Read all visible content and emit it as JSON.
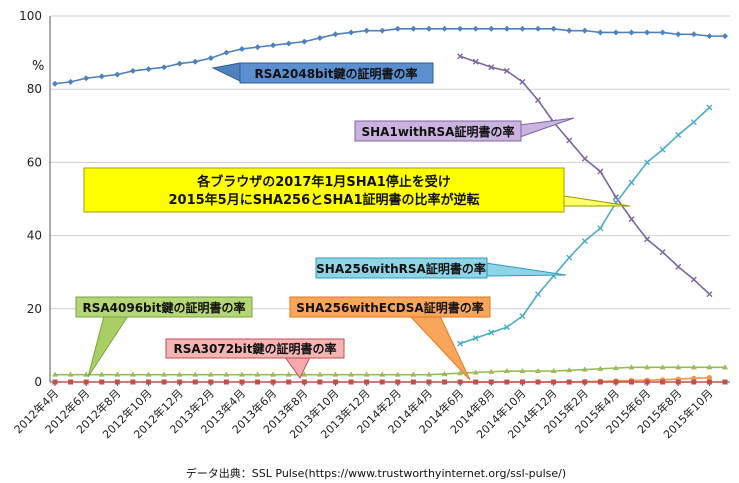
{
  "chart_data": {
    "type": "line",
    "ylabel": "%",
    "ylim": [
      0,
      100
    ],
    "yticks": [
      "0",
      "20",
      "40",
      "60",
      "80",
      "100"
    ],
    "grid": "horizontal",
    "x_labels": [
      "2012年4月",
      "2012年6月",
      "2012年8月",
      "2012年10月",
      "2012年12月",
      "2013年2月",
      "2013年4月",
      "2013年6月",
      "2013年8月",
      "2013年10月",
      "2013年12月",
      "2014年2月",
      "2014年4月",
      "2014年6月",
      "2014年8月",
      "2014年10月",
      "2014年12月",
      "2015年2月",
      "2015年4月",
      "2015年6月",
      "2015年8月",
      "2015年10月"
    ],
    "series": [
      {
        "name": "RSA2048bit鍵の証明書の率",
        "color": "#4f81bd",
        "marker": "diamond",
        "start": 0,
        "values": [
          81.5,
          82,
          83,
          83.5,
          84,
          85,
          85.5,
          86,
          87,
          87.5,
          88.5,
          90,
          91,
          91.5,
          92,
          92.5,
          93,
          94,
          95,
          95.5,
          96,
          96,
          96.5,
          96.5,
          96.5,
          96.5,
          96.5,
          96.5,
          96.5,
          96.5,
          96.5,
          96.5,
          96.5,
          96,
          96,
          95.5,
          95.5,
          95.5,
          95.5,
          95.5,
          95,
          95,
          94.5,
          94.5
        ]
      },
      {
        "name": "SHA1withRSA証明書の率",
        "color": "#8064a2",
        "marker": "x",
        "start": 26,
        "values": [
          89,
          87.5,
          86,
          85,
          82,
          77,
          71,
          66,
          61,
          57.5,
          50.5,
          44.5,
          39,
          35.5,
          31.5,
          28,
          24
        ]
      },
      {
        "name": "SHA256withRSA証明書の率",
        "color": "#4bacc6",
        "marker": "x",
        "start": 26,
        "values": [
          10.5,
          12,
          13.5,
          15,
          18,
          24,
          29,
          34,
          38.5,
          42,
          49,
          54.5,
          60,
          63.5,
          67.5,
          71,
          75
        ]
      },
      {
        "name": "RSA4096bit鍵の証明書の率",
        "color": "#9bbb59",
        "marker": "triangle",
        "start": 0,
        "values": [
          2,
          2,
          2,
          2,
          2,
          2,
          2,
          2,
          2,
          2,
          2,
          2,
          2,
          2,
          2,
          2,
          2,
          2,
          2,
          2,
          2,
          2,
          2,
          2,
          2,
          2.2,
          2.4,
          2.6,
          2.8,
          3,
          3,
          3,
          3,
          3.2,
          3.4,
          3.6,
          3.8,
          4,
          4,
          4,
          4,
          4,
          4,
          4
        ]
      },
      {
        "name": "SHA256withECDSA証明書の率",
        "color": "#f79646",
        "marker": "circle",
        "start": 26,
        "values": [
          0,
          0,
          0,
          0,
          0,
          0,
          0,
          0,
          0.1,
          0.2,
          0.3,
          0.4,
          0.5,
          0.6,
          0.8,
          1,
          1.2
        ]
      },
      {
        "name": "RSA3072bit鍵の証明書の率",
        "color": "#c0504d",
        "marker": "square",
        "start": 0,
        "values": [
          0,
          0,
          0,
          0,
          0,
          0,
          0,
          0,
          0,
          0,
          0,
          0,
          0,
          0,
          0,
          0,
          0,
          0,
          0,
          0,
          0,
          0,
          0,
          0,
          0,
          0,
          0,
          0,
          0,
          0,
          0,
          0,
          0,
          0,
          0,
          0,
          0,
          0,
          0,
          0,
          0,
          0,
          0,
          0
        ]
      }
    ],
    "annotation": {
      "line1": "各ブラウザの2017年1月SHA1停止を受け",
      "line2": "2015年5月にSHA256とSHA1証明書の比率が逆転"
    },
    "source": "データ出典：SSL Pulse(https://www.trustworthyinternet.org/ssl-pulse/)"
  }
}
